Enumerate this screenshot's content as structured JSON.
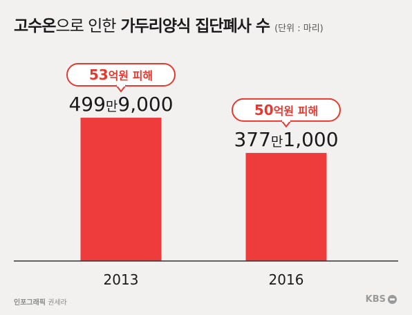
{
  "title": {
    "bold1": "고수온",
    "light": "으로 인한",
    "bold2": "가두리양식 집단폐사 수",
    "unit": "(단위 : 마리)"
  },
  "chart_data": {
    "type": "bar",
    "categories": [
      "2013",
      "2016"
    ],
    "values": [
      4999000,
      3771000
    ],
    "value_labels": [
      {
        "num1": "499",
        "word": "만",
        "num2": "9,000"
      },
      {
        "num1": "377",
        "word": "만",
        "num2": "1,000"
      }
    ],
    "callouts": [
      {
        "num": "53",
        "text": "억원 피해"
      },
      {
        "num": "50",
        "text": "억원 피해"
      }
    ],
    "ylim": [
      0,
      5000000
    ],
    "colors": {
      "bar": "#ee3b3b",
      "callout": "#e5392f",
      "axis": "#333333",
      "text": "#1a1a1a"
    }
  },
  "footer": {
    "credit_role": "인포그래픽",
    "credit_name": "권세라",
    "brand": "KBS"
  }
}
